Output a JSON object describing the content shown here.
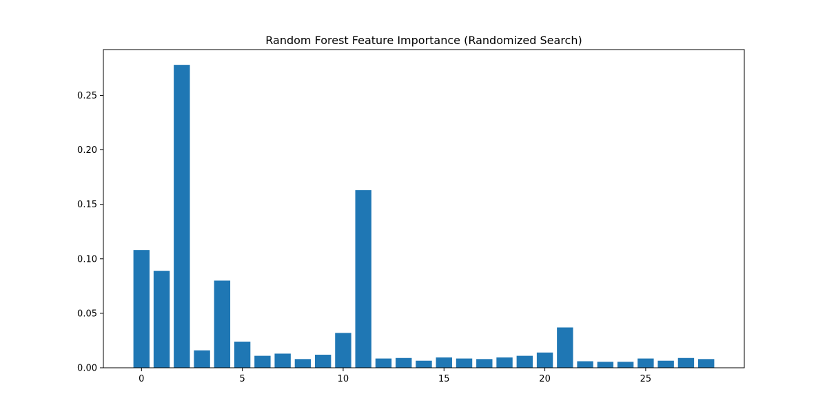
{
  "chart_data": {
    "type": "bar",
    "title": "Random Forest Feature Importance (Randomized Search)",
    "xlabel": "",
    "ylabel": "",
    "x": [
      0,
      1,
      2,
      3,
      4,
      5,
      6,
      7,
      8,
      9,
      10,
      11,
      12,
      13,
      14,
      15,
      16,
      17,
      18,
      19,
      20,
      21,
      22,
      23,
      24,
      25,
      26,
      27,
      28
    ],
    "values": [
      0.108,
      0.089,
      0.278,
      0.016,
      0.08,
      0.024,
      0.011,
      0.013,
      0.008,
      0.012,
      0.032,
      0.163,
      0.0085,
      0.009,
      0.0065,
      0.0095,
      0.0085,
      0.008,
      0.0095,
      0.011,
      0.014,
      0.037,
      0.006,
      0.0055,
      0.0055,
      0.0085,
      0.0065,
      0.009,
      0.008
    ],
    "xlim": [
      -1.89,
      29.89
    ],
    "ylim": [
      0,
      0.292
    ],
    "xticks": [
      0,
      5,
      10,
      15,
      20,
      25
    ],
    "xtick_labels": [
      "0",
      "5",
      "10",
      "15",
      "20",
      "25"
    ],
    "yticks": [
      0.0,
      0.05,
      0.1,
      0.15,
      0.2,
      0.25
    ],
    "ytick_labels": [
      "0.00",
      "0.05",
      "0.10",
      "0.15",
      "0.20",
      "0.25"
    ],
    "bar_color": "#1f77b4",
    "grid": false,
    "legend": "none"
  }
}
